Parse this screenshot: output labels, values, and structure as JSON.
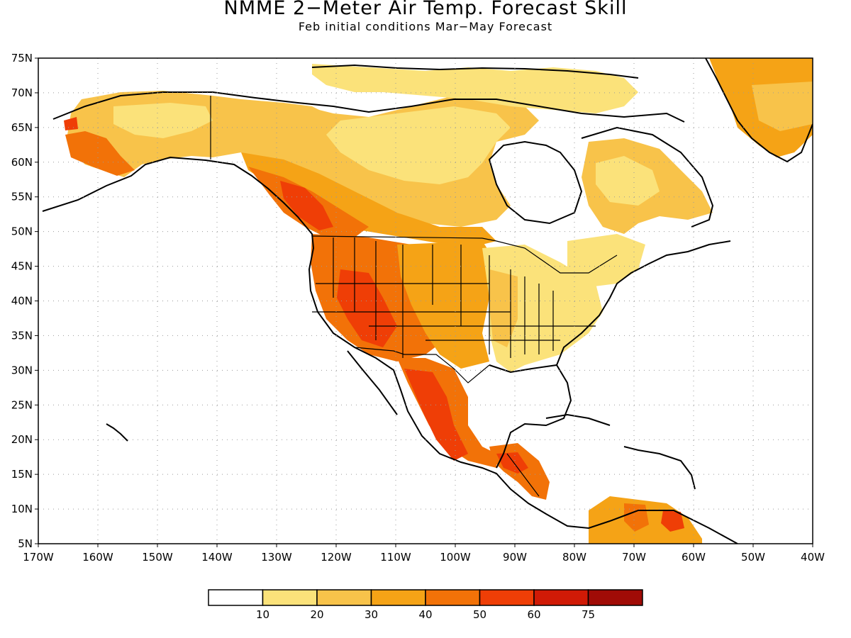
{
  "title": "NMME 2−Meter Air Temp. Forecast Skill",
  "subtitle": "Feb initial conditions   Mar−May Forecast",
  "map": {
    "lon_range": [
      -170,
      -40
    ],
    "lat_range": [
      5,
      75
    ],
    "lat_ticks": [
      "75N",
      "70N",
      "65N",
      "60N",
      "55N",
      "50N",
      "45N",
      "40N",
      "35N",
      "30N",
      "25N",
      "20N",
      "15N",
      "10N",
      "5N"
    ],
    "lon_ticks": [
      "170W",
      "160W",
      "150W",
      "140W",
      "130W",
      "120W",
      "110W",
      "100W",
      "90W",
      "80W",
      "70W",
      "60W",
      "50W",
      "40W"
    ],
    "grid": "dotted"
  },
  "colorbar": {
    "labels": [
      "10",
      "20",
      "30",
      "40",
      "50",
      "60",
      "75"
    ],
    "colors": [
      "#ffffff",
      "#fbe27a",
      "#f8c34a",
      "#f5a316",
      "#f27208",
      "#ef3e06",
      "#d01a06",
      "#a00b06"
    ]
  },
  "palette": {
    "c1": "#fbe27a",
    "c2": "#f8c34a",
    "c3": "#f5a316",
    "c4": "#f27208",
    "c5": "#ef3e06",
    "c6": "#d01a06"
  }
}
